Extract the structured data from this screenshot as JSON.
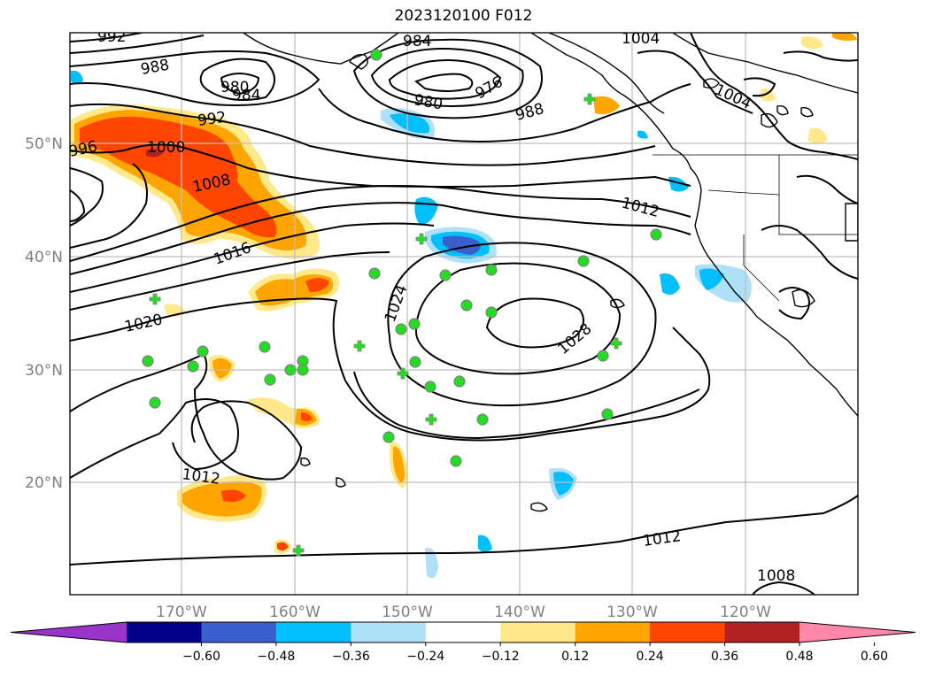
{
  "title": "2023120100 F012",
  "colors": {
    "contour": "#000000",
    "grid": "#bfbfbf",
    "coast": "#000000",
    "obs_marker": "#22dd22"
  },
  "latitude_labels": [
    "50°N",
    "40°N",
    "30°N",
    "20°N"
  ],
  "longitude_labels": [
    "170°W",
    "160°W",
    "150°W",
    "140°W",
    "130°W",
    "120°W"
  ],
  "isobar_labels": [
    "992",
    "984",
    "1004",
    "988",
    "980",
    "984",
    "980",
    "976",
    "988",
    "1004",
    "992",
    "996",
    "1000",
    "1008",
    "1012",
    "1016",
    "1024",
    "1020",
    "1028",
    "1012",
    "1012",
    "1008"
  ],
  "colorbar": {
    "ticks": [
      "−0.60",
      "−0.48",
      "−0.36",
      "−0.24",
      "−0.12",
      "0.12",
      "0.24",
      "0.36",
      "0.48",
      "0.60"
    ],
    "colors": [
      "#9a34c9",
      "#00008b",
      "#3a5fcd",
      "#00bfff",
      "#aee0f8",
      "#ffffff",
      "#ffe98a",
      "#ffa500",
      "#ff4500",
      "#b22222",
      "#ff88aa"
    ]
  }
}
